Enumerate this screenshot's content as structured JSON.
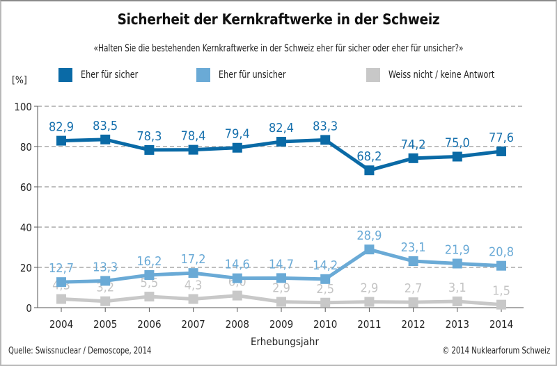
{
  "chart_data": {
    "type": "line",
    "title": "Sicherheit der Kernkraftwerke in der Schweiz",
    "subtitle": "«Halten Sie die bestehenden Kernkraftwerke in der Schweiz eher für sicher oder eher für unsicher?»",
    "xlabel": "Erhebungsjahr",
    "ylabel": "[%]",
    "ylim": [
      0,
      100
    ],
    "yticks": [
      0,
      20,
      40,
      60,
      80,
      100
    ],
    "grid": true,
    "legend_position": "top",
    "x": [
      "2004",
      "2005",
      "2006",
      "2007",
      "2008",
      "2009",
      "2010",
      "2011",
      "2012",
      "2013",
      "2014"
    ],
    "series": [
      {
        "name": "Eher für sicher",
        "color": "#0a6aa6",
        "label_color": "#1670ad",
        "values": [
          82.9,
          83.5,
          78.3,
          78.4,
          79.4,
          82.4,
          83.3,
          68.2,
          74.2,
          75.0,
          77.6
        ],
        "labels": [
          "82,9",
          "83,5",
          "78,3",
          "78,4",
          "79,4",
          "82,4",
          "83,3",
          "68,2",
          "74,2",
          "75,0",
          "77,6"
        ]
      },
      {
        "name": "Eher für unsicher",
        "color": "#6aaad6",
        "label_color": "#6aaad6",
        "values": [
          12.7,
          13.3,
          16.2,
          17.2,
          14.6,
          14.7,
          14.2,
          28.9,
          23.1,
          21.9,
          20.8
        ],
        "labels": [
          "12,7",
          "13,3",
          "16,2",
          "17,2",
          "14,6",
          "14,7",
          "14,2",
          "28,9",
          "23,1",
          "21,9",
          "20,8"
        ]
      },
      {
        "name": "Weiss nicht / keine Antwort",
        "color": "#c8c8c8",
        "label_color": "#c4c4c4",
        "values": [
          4.3,
          3.2,
          5.5,
          4.3,
          6.0,
          2.9,
          2.5,
          2.9,
          2.7,
          3.1,
          1.5
        ],
        "labels": [
          "4,3",
          "3,2",
          "5,5",
          "4,3",
          "6,0",
          "2,9",
          "2,5",
          "2,9",
          "2,7",
          "3,1",
          "1,5"
        ]
      }
    ]
  },
  "footer": {
    "source": "Quelle: Swissnuclear / Demoscope, 2014",
    "copyright": "© 2014 Nuklearforum Schweiz"
  }
}
